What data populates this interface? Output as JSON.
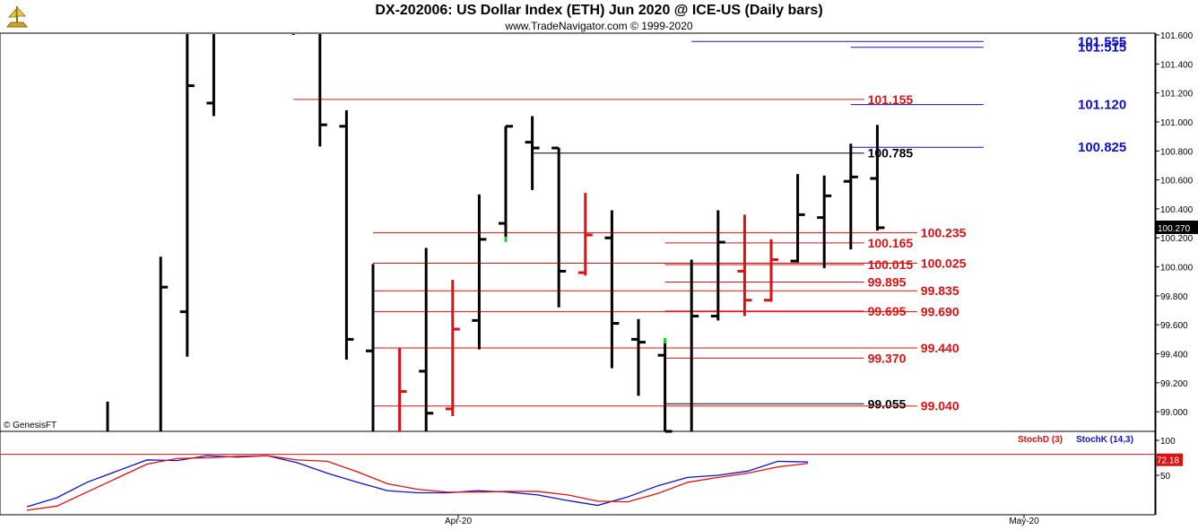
{
  "header": {
    "title": "DX-202006:  US Dollar Index (ETH) Jun 2020 @ ICE-US  (Daily bars)",
    "subtitle": "www.TradeNavigator.com © 1999-2020"
  },
  "colors": {
    "bar": "#000000",
    "up_bar_tick": "#22cc22",
    "highlight_bar": "#ee1111",
    "red_level": "#dd1111",
    "blue_level": "#1111cc",
    "black_level": "#000000",
    "stochD": "#dd1111",
    "stochK": "#1111cc"
  },
  "chart_data": [
    {
      "type": "ohlc",
      "title": "DX-202006:  US Dollar Index (ETH) Jun 2020 @ ICE-US  (Daily bars)",
      "ylim": [
        98.84,
        101.64
      ],
      "yticks": [
        "101.600",
        "101.400",
        "101.200",
        "101.000",
        "100.800",
        "100.600",
        "100.400",
        "100.200",
        "100.000",
        "99.800",
        "99.600",
        "99.400",
        "99.200",
        "99.000"
      ],
      "ytick_values": [
        101.6,
        101.4,
        101.2,
        101.0,
        100.8,
        100.6,
        100.4,
        100.2,
        100.0,
        99.8,
        99.6,
        99.4,
        99.2,
        99.0
      ],
      "last_price_label": "100.270",
      "last_price": 100.27,
      "copyright": "© GenesisFT",
      "bars": [
        {
          "i": 0,
          "o": null,
          "h": 99.07,
          "l": 98.84,
          "c": null,
          "color": "black"
        },
        {
          "i": 2,
          "o": null,
          "h": 100.07,
          "l": 98.84,
          "c": 99.86,
          "color": "black"
        },
        {
          "i": 3,
          "o": 99.69,
          "h": 101.64,
          "l": 99.38,
          "c": 101.25,
          "color": "black"
        },
        {
          "i": 4,
          "o": 101.13,
          "h": 101.64,
          "l": 101.04,
          "c": null,
          "color": "black"
        },
        {
          "i": 7,
          "o": null,
          "h": 101.64,
          "l": 101.6,
          "c": null,
          "color": "black"
        },
        {
          "i": 8,
          "o": null,
          "h": 101.64,
          "l": 100.83,
          "c": 100.98,
          "color": "black"
        },
        {
          "i": 9,
          "o": 100.97,
          "h": 101.08,
          "l": 99.36,
          "c": 99.5,
          "color": "black"
        },
        {
          "i": 10,
          "o": 99.42,
          "h": 100.02,
          "l": 98.84,
          "c": null,
          "color": "black"
        },
        {
          "i": 11,
          "o": null,
          "h": 99.44,
          "l": 98.84,
          "c": 99.14,
          "color": "red"
        },
        {
          "i": 12,
          "o": 99.28,
          "h": 100.13,
          "l": 98.84,
          "c": 98.99,
          "color": "black"
        },
        {
          "i": 13,
          "o": 99.02,
          "h": 99.91,
          "l": 98.97,
          "c": 99.57,
          "color": "red"
        },
        {
          "i": 14,
          "o": 99.63,
          "h": 100.5,
          "l": 99.43,
          "c": 100.19,
          "color": "black"
        },
        {
          "i": 15,
          "o": 100.3,
          "h": 100.97,
          "l": 100.19,
          "c": 100.97,
          "color": "black",
          "tick": "green"
        },
        {
          "i": 16,
          "o": 100.86,
          "h": 101.04,
          "l": 100.53,
          "c": 100.82,
          "color": "black"
        },
        {
          "i": 17,
          "o": 100.82,
          "h": 100.82,
          "l": 99.72,
          "c": 99.97,
          "color": "black"
        },
        {
          "i": 18,
          "o": 99.96,
          "h": 100.51,
          "l": 99.94,
          "c": 100.22,
          "color": "red"
        },
        {
          "i": 19,
          "o": 100.2,
          "h": 100.39,
          "l": 99.3,
          "c": 99.61,
          "color": "black"
        },
        {
          "i": 20,
          "o": 99.5,
          "h": 99.64,
          "l": 99.11,
          "c": 99.48,
          "color": "black"
        },
        {
          "i": 21,
          "o": 99.39,
          "h": 99.49,
          "l": 98.84,
          "c": 98.86,
          "color": "black",
          "tick": "green"
        },
        {
          "i": 22,
          "o": null,
          "h": 100.05,
          "l": 98.84,
          "c": 99.66,
          "color": "black"
        },
        {
          "i": 23,
          "o": 99.66,
          "h": 100.39,
          "l": 99.63,
          "c": 100.17,
          "color": "black"
        },
        {
          "i": 24,
          "o": 99.97,
          "h": 100.36,
          "l": 99.66,
          "c": 99.77,
          "color": "red"
        },
        {
          "i": 25,
          "o": 99.77,
          "h": 100.19,
          "l": 99.76,
          "c": 100.05,
          "color": "red"
        },
        {
          "i": 26,
          "o": 100.04,
          "h": 100.64,
          "l": 100.03,
          "c": 100.36,
          "color": "black"
        },
        {
          "i": 27,
          "o": 100.34,
          "h": 100.63,
          "l": 99.99,
          "c": 100.49,
          "color": "black"
        },
        {
          "i": 28,
          "o": 100.59,
          "h": 100.85,
          "l": 100.12,
          "c": 100.62,
          "color": "black"
        },
        {
          "i": 29,
          "o": 100.61,
          "h": 100.98,
          "l": 100.25,
          "c": 100.27,
          "color": "black"
        }
      ],
      "levels": [
        {
          "value": 101.555,
          "label": "101.555",
          "color": "blue",
          "from": 22,
          "to": 33
        },
        {
          "value": 101.515,
          "label": "101.515",
          "color": "blue",
          "from": 28,
          "to": 33,
          "label_side": "left"
        },
        {
          "value": 101.155,
          "label": "101.155",
          "color": "red",
          "from": 7,
          "to": 28.5
        },
        {
          "value": 101.12,
          "label": "101.120",
          "color": "blue",
          "from": 28,
          "to": 33
        },
        {
          "value": 100.825,
          "label": "100.825",
          "color": "blue",
          "from": 28,
          "to": 33
        },
        {
          "value": 100.785,
          "label": "100.785",
          "color": "black",
          "from": 16,
          "to": 28.5
        },
        {
          "value": 100.235,
          "label": "100.235",
          "color": "red",
          "from": 10,
          "to": 30.5
        },
        {
          "value": 100.165,
          "label": "100.165",
          "color": "red",
          "from": 21,
          "to": 28.5
        },
        {
          "value": 100.025,
          "label": "100.025",
          "color": "red",
          "from": 10,
          "to": 30.5
        },
        {
          "value": 100.015,
          "label": "100.015",
          "color": "red",
          "from": 21,
          "to": 28.5
        },
        {
          "value": 99.895,
          "label": "99.895",
          "color": "red",
          "from": 21,
          "to": 28.5
        },
        {
          "value": 99.835,
          "label": "99.835",
          "color": "red",
          "from": 10,
          "to": 30.5
        },
        {
          "value": 99.695,
          "label": "99.695",
          "color": "red",
          "from": 21,
          "to": 28.5
        },
        {
          "value": 99.69,
          "label": "99.690",
          "color": "red",
          "from": 10,
          "to": 30.5
        },
        {
          "value": 99.44,
          "label": "99.440",
          "color": "red",
          "from": 10,
          "to": 30.5
        },
        {
          "value": 99.37,
          "label": "99.370",
          "color": "red",
          "from": 21,
          "to": 28.5
        },
        {
          "value": 99.055,
          "label": "99.055",
          "color": "black",
          "from": 21,
          "to": 28.5
        },
        {
          "value": 99.04,
          "label": "99.040",
          "color": "red",
          "from": 10,
          "to": 30.5
        }
      ]
    },
    {
      "type": "line",
      "legend": [
        "StochD (3)",
        "StochK (14,3)"
      ],
      "ylim": [
        0,
        100
      ],
      "ytick_labels": [
        "100",
        "50"
      ],
      "ytick_values": [
        100,
        50
      ],
      "x_labels": [
        {
          "label": "Apr-20",
          "i": 13
        },
        {
          "label": "May-20",
          "i": 37
        }
      ],
      "last_value_label": "72.18",
      "last_value": 72.18,
      "threshold": 80,
      "series": [
        {
          "name": "StochK (14,3)",
          "color": "blue",
          "values": [
            5,
            18,
            40,
            56,
            72,
            71,
            78,
            76,
            78,
            68,
            53,
            40,
            28,
            25,
            25,
            28,
            26,
            22,
            14,
            7,
            19,
            35,
            47,
            50,
            56,
            70,
            69,
            null,
            null,
            null
          ]
        },
        {
          "name": "StochD (3)",
          "color": "red",
          "values": [
            0,
            6,
            26,
            46,
            66,
            74,
            75,
            77,
            78,
            72,
            70,
            55,
            38,
            30,
            26,
            26,
            27,
            27,
            22,
            13,
            12,
            24,
            40,
            47,
            53,
            62,
            67,
            null,
            null,
            null
          ]
        }
      ]
    }
  ]
}
